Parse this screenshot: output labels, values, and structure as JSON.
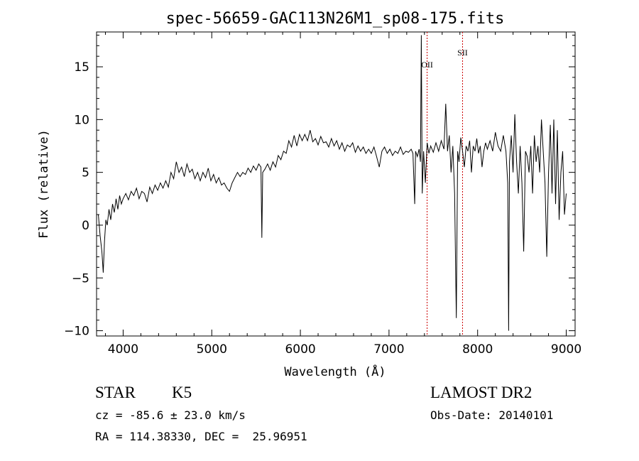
{
  "chart_data": {
    "type": "line",
    "title": "spec-56659-GAC113N26M1_sp08-175.fits",
    "xlabel": "Wavelength (Å)",
    "ylabel": "Flux (relative)",
    "xlim": [
      3700,
      9100
    ],
    "ylim": [
      -10.5,
      18.3
    ],
    "x_ticks": [
      4000,
      5000,
      6000,
      7000,
      8000,
      9000
    ],
    "y_ticks": [
      -10,
      -5,
      0,
      5,
      10,
      15
    ],
    "grid": false,
    "series": [
      {
        "color": "#000000",
        "points": [
          [
            3720,
            1.0
          ],
          [
            3740,
            -1.0
          ],
          [
            3760,
            -2.5
          ],
          [
            3775,
            -4.5
          ],
          [
            3790,
            -1.5
          ],
          [
            3805,
            0.5
          ],
          [
            3820,
            0.0
          ],
          [
            3840,
            1.5
          ],
          [
            3860,
            0.5
          ],
          [
            3880,
            2.0
          ],
          [
            3900,
            1.2
          ],
          [
            3920,
            2.5
          ],
          [
            3940,
            1.5
          ],
          [
            3960,
            2.8
          ],
          [
            3980,
            2.0
          ],
          [
            4000,
            2.5
          ],
          [
            4030,
            3.0
          ],
          [
            4060,
            2.4
          ],
          [
            4090,
            3.2
          ],
          [
            4120,
            2.8
          ],
          [
            4150,
            3.5
          ],
          [
            4180,
            2.5
          ],
          [
            4210,
            3.2
          ],
          [
            4240,
            3.0
          ],
          [
            4270,
            2.2
          ],
          [
            4300,
            3.6
          ],
          [
            4330,
            3.0
          ],
          [
            4360,
            3.8
          ],
          [
            4390,
            3.3
          ],
          [
            4420,
            4.0
          ],
          [
            4450,
            3.5
          ],
          [
            4480,
            4.2
          ],
          [
            4510,
            3.6
          ],
          [
            4540,
            5.0
          ],
          [
            4570,
            4.4
          ],
          [
            4600,
            6.0
          ],
          [
            4630,
            5.0
          ],
          [
            4660,
            5.5
          ],
          [
            4690,
            4.6
          ],
          [
            4720,
            5.8
          ],
          [
            4750,
            5.0
          ],
          [
            4780,
            5.3
          ],
          [
            4810,
            4.4
          ],
          [
            4840,
            5.0
          ],
          [
            4870,
            4.2
          ],
          [
            4900,
            5.0
          ],
          [
            4930,
            4.5
          ],
          [
            4960,
            5.4
          ],
          [
            4990,
            4.2
          ],
          [
            5020,
            4.8
          ],
          [
            5050,
            4.0
          ],
          [
            5080,
            4.5
          ],
          [
            5110,
            3.8
          ],
          [
            5140,
            4.0
          ],
          [
            5170,
            3.5
          ],
          [
            5200,
            3.2
          ],
          [
            5230,
            4.0
          ],
          [
            5260,
            4.5
          ],
          [
            5290,
            5.0
          ],
          [
            5320,
            4.6
          ],
          [
            5350,
            5.0
          ],
          [
            5380,
            4.8
          ],
          [
            5410,
            5.4
          ],
          [
            5440,
            5.0
          ],
          [
            5470,
            5.6
          ],
          [
            5500,
            5.2
          ],
          [
            5530,
            5.8
          ],
          [
            5555,
            5.5
          ],
          [
            5565,
            -1.2
          ],
          [
            5575,
            5.0
          ],
          [
            5600,
            5.3
          ],
          [
            5630,
            5.8
          ],
          [
            5660,
            5.2
          ],
          [
            5690,
            6.0
          ],
          [
            5720,
            5.5
          ],
          [
            5750,
            6.6
          ],
          [
            5780,
            6.2
          ],
          [
            5810,
            7.0
          ],
          [
            5840,
            6.8
          ],
          [
            5870,
            8.0
          ],
          [
            5900,
            7.4
          ],
          [
            5930,
            8.5
          ],
          [
            5960,
            7.5
          ],
          [
            5990,
            8.6
          ],
          [
            6020,
            8.0
          ],
          [
            6050,
            8.6
          ],
          [
            6080,
            8.0
          ],
          [
            6110,
            9.0
          ],
          [
            6140,
            7.9
          ],
          [
            6170,
            8.2
          ],
          [
            6200,
            7.6
          ],
          [
            6230,
            8.4
          ],
          [
            6260,
            7.8
          ],
          [
            6290,
            7.9
          ],
          [
            6320,
            7.4
          ],
          [
            6350,
            8.2
          ],
          [
            6380,
            7.5
          ],
          [
            6410,
            8.0
          ],
          [
            6440,
            7.2
          ],
          [
            6470,
            7.8
          ],
          [
            6500,
            7.0
          ],
          [
            6530,
            7.6
          ],
          [
            6560,
            7.4
          ],
          [
            6590,
            7.8
          ],
          [
            6620,
            6.9
          ],
          [
            6650,
            7.5
          ],
          [
            6680,
            7.0
          ],
          [
            6710,
            7.4
          ],
          [
            6740,
            6.8
          ],
          [
            6770,
            7.2
          ],
          [
            6800,
            6.8
          ],
          [
            6830,
            7.4
          ],
          [
            6860,
            6.5
          ],
          [
            6890,
            5.5
          ],
          [
            6920,
            7.0
          ],
          [
            6950,
            7.4
          ],
          [
            6980,
            6.8
          ],
          [
            7010,
            7.2
          ],
          [
            7040,
            6.6
          ],
          [
            7070,
            7.0
          ],
          [
            7100,
            6.8
          ],
          [
            7130,
            7.4
          ],
          [
            7160,
            6.7
          ],
          [
            7190,
            7.0
          ],
          [
            7220,
            6.9
          ],
          [
            7250,
            7.2
          ],
          [
            7270,
            6.8
          ],
          [
            7290,
            2.0
          ],
          [
            7300,
            7.0
          ],
          [
            7320,
            6.5
          ],
          [
            7340,
            7.2
          ],
          [
            7355,
            6.0
          ],
          [
            7365,
            18.0
          ],
          [
            7375,
            3.0
          ],
          [
            7390,
            7.0
          ],
          [
            7410,
            4.0
          ],
          [
            7430,
            7.8
          ],
          [
            7450,
            6.8
          ],
          [
            7470,
            7.5
          ],
          [
            7500,
            6.9
          ],
          [
            7530,
            7.8
          ],
          [
            7560,
            7.0
          ],
          [
            7590,
            8.0
          ],
          [
            7620,
            7.2
          ],
          [
            7640,
            11.5
          ],
          [
            7660,
            7.0
          ],
          [
            7680,
            8.5
          ],
          [
            7700,
            5.0
          ],
          [
            7720,
            7.5
          ],
          [
            7740,
            3.0
          ],
          [
            7760,
            -8.8
          ],
          [
            7775,
            7.0
          ],
          [
            7790,
            6.0
          ],
          [
            7810,
            8.3
          ],
          [
            7830,
            7.0
          ],
          [
            7850,
            5.5
          ],
          [
            7870,
            7.5
          ],
          [
            7890,
            7.0
          ],
          [
            7910,
            8.0
          ],
          [
            7930,
            5.0
          ],
          [
            7950,
            7.5
          ],
          [
            7970,
            7.0
          ],
          [
            7990,
            8.2
          ],
          [
            8010,
            6.8
          ],
          [
            8030,
            7.5
          ],
          [
            8050,
            5.5
          ],
          [
            8070,
            7.0
          ],
          [
            8090,
            7.8
          ],
          [
            8110,
            7.2
          ],
          [
            8140,
            8.0
          ],
          [
            8170,
            7.0
          ],
          [
            8200,
            8.8
          ],
          [
            8230,
            7.5
          ],
          [
            8260,
            7.0
          ],
          [
            8290,
            8.5
          ],
          [
            8320,
            7.0
          ],
          [
            8340,
            4.0
          ],
          [
            8350,
            -10.0
          ],
          [
            8360,
            6.0
          ],
          [
            8380,
            8.5
          ],
          [
            8400,
            5.0
          ],
          [
            8420,
            10.5
          ],
          [
            8440,
            6.0
          ],
          [
            8460,
            3.0
          ],
          [
            8480,
            7.5
          ],
          [
            8500,
            4.0
          ],
          [
            8520,
            -2.5
          ],
          [
            8540,
            7.0
          ],
          [
            8560,
            6.5
          ],
          [
            8580,
            5.0
          ],
          [
            8600,
            7.5
          ],
          [
            8620,
            3.0
          ],
          [
            8640,
            8.5
          ],
          [
            8660,
            6.0
          ],
          [
            8680,
            7.5
          ],
          [
            8700,
            5.0
          ],
          [
            8720,
            10.0
          ],
          [
            8740,
            7.0
          ],
          [
            8760,
            4.0
          ],
          [
            8780,
            -3.0
          ],
          [
            8800,
            5.0
          ],
          [
            8820,
            9.5
          ],
          [
            8840,
            3.0
          ],
          [
            8860,
            10.0
          ],
          [
            8880,
            2.0
          ],
          [
            8900,
            9.0
          ],
          [
            8920,
            0.5
          ],
          [
            8940,
            5.0
          ],
          [
            8960,
            7.0
          ],
          [
            8980,
            1.0
          ],
          [
            9000,
            3.0
          ]
        ]
      }
    ],
    "lines": [
      {
        "label": "OII",
        "x": 7430,
        "color": "#cc0000"
      },
      {
        "label": "SII",
        "x": 7830,
        "color": "#cc0000"
      }
    ]
  },
  "info": {
    "class_label": "STAR",
    "subclass_label": "K5",
    "cz_text": "cz = -85.6 ± 23.0 km/s",
    "radec_text": "RA = 114.38330, DEC =  25.96951",
    "survey_label": "LAMOST DR2",
    "obsdate_text": "Obs-Date: 20140101"
  }
}
